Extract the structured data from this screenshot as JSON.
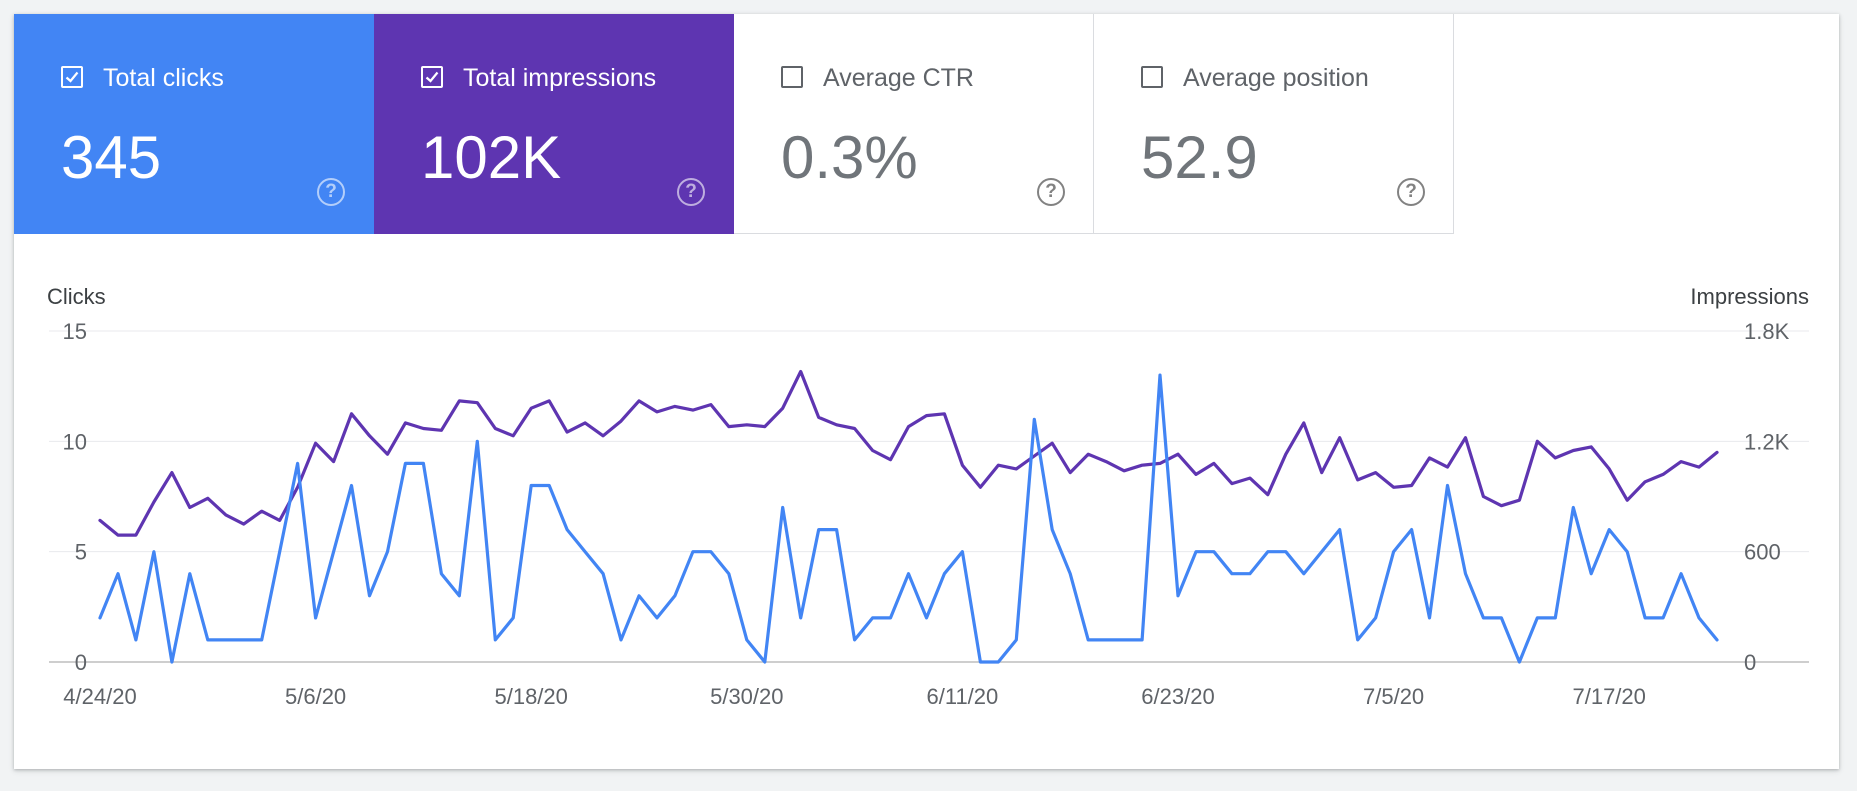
{
  "metrics": [
    {
      "label": "Total clicks",
      "value": "345",
      "checked": true,
      "color": "#4285f4"
    },
    {
      "label": "Total impressions",
      "value": "102K",
      "checked": true,
      "color": "#5e35b1"
    },
    {
      "label": "Average CTR",
      "value": "0.3%",
      "checked": false,
      "color": "#ffffff"
    },
    {
      "label": "Average position",
      "value": "52.9",
      "checked": false,
      "color": "#ffffff"
    }
  ],
  "help_glyph": "?",
  "chart_data": {
    "type": "line",
    "y_left_label": "Clicks",
    "y_right_label": "Impressions",
    "y_left_ticks": [
      "0",
      "5",
      "10",
      "15"
    ],
    "y_left_range": [
      0,
      15
    ],
    "y_right_ticks": [
      "0",
      "600",
      "1.2K",
      "1.8K"
    ],
    "y_right_range": [
      0,
      1800
    ],
    "x_tick_labels": [
      "4/24/20",
      "5/6/20",
      "5/18/20",
      "5/30/20",
      "6/11/20",
      "6/23/20",
      "7/5/20",
      "7/17/20"
    ],
    "x_tick_index": [
      0,
      12,
      24,
      36,
      48,
      60,
      72,
      84
    ],
    "grid": true,
    "series": [
      {
        "name": "Clicks",
        "axis": "left",
        "color": "#4285f4",
        "values": [
          2,
          4,
          1,
          5,
          0,
          4,
          1,
          1,
          1,
          1,
          5,
          9,
          2,
          5,
          8,
          3,
          5,
          9,
          9,
          4,
          3,
          10,
          1,
          2,
          8,
          8,
          6,
          5,
          4,
          1,
          3,
          2,
          3,
          5,
          5,
          4,
          1,
          0,
          7,
          2,
          6,
          6,
          1,
          2,
          2,
          4,
          2,
          4,
          5,
          0,
          0,
          1,
          11,
          6,
          4,
          1,
          1,
          1,
          1,
          13,
          3,
          5,
          5,
          4,
          4,
          5,
          5,
          4,
          5,
          6,
          1,
          2,
          5,
          6,
          2,
          8,
          4,
          2,
          2,
          0,
          2,
          2,
          7,
          4,
          6,
          5,
          2,
          2,
          4,
          2,
          1
        ]
      },
      {
        "name": "Impressions",
        "axis": "right",
        "color": "#5e35b1",
        "values": [
          770,
          690,
          690,
          870,
          1030,
          840,
          890,
          800,
          750,
          820,
          770,
          950,
          1190,
          1090,
          1350,
          1230,
          1130,
          1300,
          1270,
          1260,
          1420,
          1410,
          1270,
          1230,
          1380,
          1420,
          1250,
          1300,
          1230,
          1310,
          1420,
          1360,
          1390,
          1370,
          1400,
          1280,
          1290,
          1280,
          1380,
          1580,
          1330,
          1290,
          1270,
          1150,
          1100,
          1280,
          1340,
          1350,
          1070,
          950,
          1070,
          1050,
          1120,
          1190,
          1030,
          1130,
          1090,
          1040,
          1070,
          1080,
          1130,
          1020,
          1080,
          970,
          1000,
          910,
          1130,
          1300,
          1030,
          1220,
          990,
          1030,
          950,
          960,
          1110,
          1060,
          1220,
          900,
          850,
          880,
          1200,
          1110,
          1150,
          1170,
          1050,
          880,
          980,
          1020,
          1090,
          1060,
          1140
        ]
      }
    ]
  }
}
